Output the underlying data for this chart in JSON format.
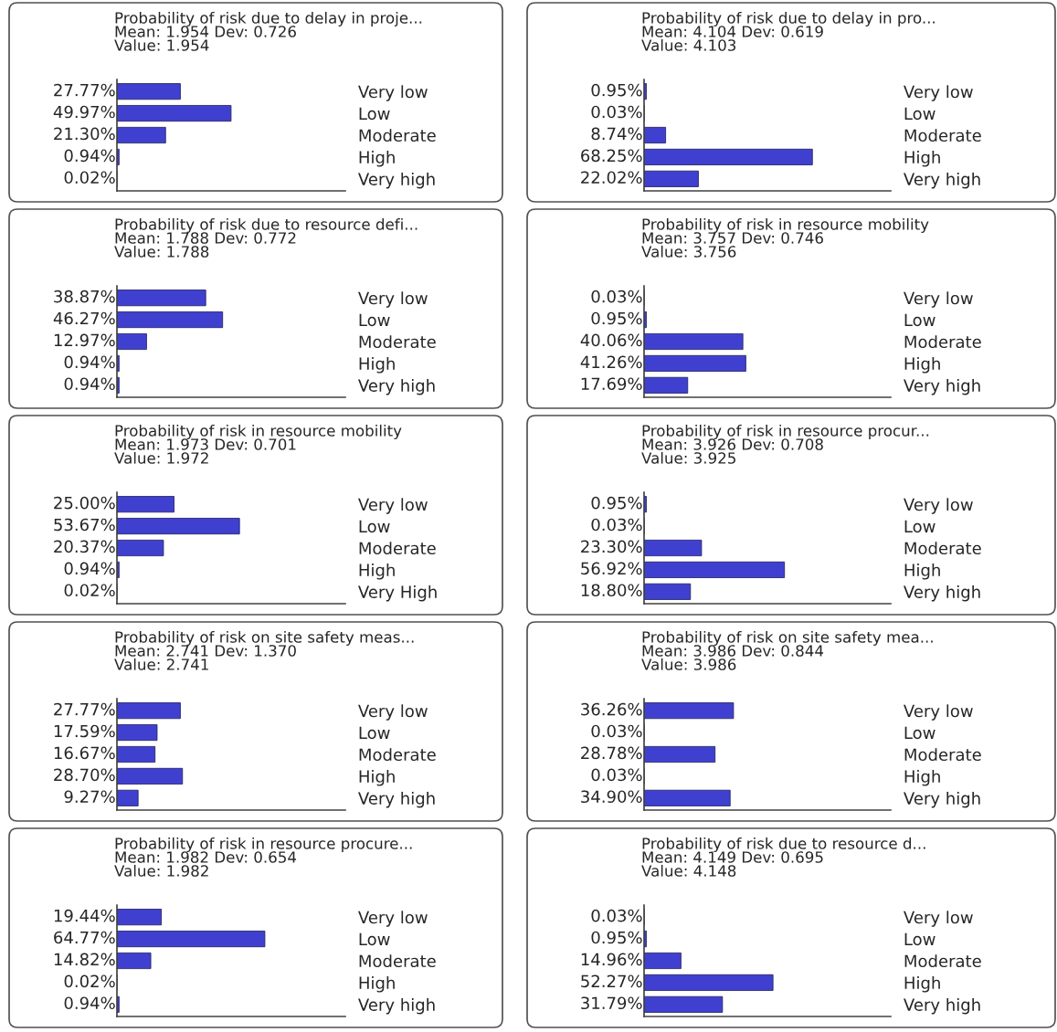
{
  "chart_data": [
    {
      "type": "bar",
      "orientation": "horizontal",
      "title": "Probability of risk due to delay in proje...",
      "subtitle": "Mean: 1.954 Dev: 0.726",
      "annotations": [
        "Value: 1.954"
      ],
      "categories": [
        "Very low",
        "Low",
        "Moderate",
        "High",
        "Very high"
      ],
      "values": [
        27.77,
        49.97,
        21.3,
        0.94,
        0.02
      ],
      "value_labels": [
        "27.77%",
        "49.97%",
        "21.30%",
        "0.94%",
        "0.02%"
      ],
      "color": "#4040d0",
      "xlim": [
        0,
        100
      ],
      "tick_labels": "y",
      "grid": false,
      "legend": false
    },
    {
      "type": "bar",
      "orientation": "horizontal",
      "title": "Probability of risk due to delay in pro...",
      "subtitle": "Mean: 4.104 Dev: 0.619",
      "annotations": [
        "Value: 4.103"
      ],
      "categories": [
        "Very low",
        "Low",
        "Moderate",
        "High",
        "Very high"
      ],
      "values": [
        0.95,
        0.03,
        8.74,
        68.25,
        22.02
      ],
      "value_labels": [
        "0.95%",
        "0.03%",
        "8.74%",
        "68.25%",
        "22.02%"
      ],
      "color": "#4040d0",
      "xlim": [
        0,
        100
      ],
      "tick_labels": "y",
      "grid": false,
      "legend": false
    },
    {
      "type": "bar",
      "orientation": "horizontal",
      "title": "Probability of risk due to resource defi...",
      "subtitle": "Mean: 1.788 Dev: 0.772",
      "annotations": [
        "Value: 1.788"
      ],
      "categories": [
        "Very low",
        "Low",
        "Moderate",
        "High",
        "Very high"
      ],
      "values": [
        38.87,
        46.27,
        12.97,
        0.94,
        0.94
      ],
      "value_labels": [
        "38.87%",
        "46.27%",
        "12.97%",
        "0.94%",
        "0.94%"
      ],
      "color": "#4040d0",
      "xlim": [
        0,
        100
      ],
      "tick_labels": "y",
      "grid": false,
      "legend": false
    },
    {
      "type": "bar",
      "orientation": "horizontal",
      "title": "Probability of risk in resource mobility",
      "subtitle": "Mean: 3.757 Dev: 0.746",
      "annotations": [
        "Value: 3.756"
      ],
      "categories": [
        "Very low",
        "Low",
        "Moderate",
        "High",
        "Very high"
      ],
      "values": [
        0.03,
        0.95,
        40.06,
        41.26,
        17.69
      ],
      "value_labels": [
        "0.03%",
        "0.95%",
        "40.06%",
        "41.26%",
        "17.69%"
      ],
      "color": "#4040d0",
      "xlim": [
        0,
        100
      ],
      "tick_labels": "y",
      "grid": false,
      "legend": false
    },
    {
      "type": "bar",
      "orientation": "horizontal",
      "title": "Probability of risk in resource mobility",
      "subtitle": "Mean: 1.973 Dev: 0.701",
      "annotations": [
        "Value: 1.972"
      ],
      "categories": [
        "Very low",
        "Low",
        "Moderate",
        "High",
        "Very High"
      ],
      "values": [
        25.0,
        53.67,
        20.37,
        0.94,
        0.02
      ],
      "value_labels": [
        "25.00%",
        "53.67%",
        "20.37%",
        "0.94%",
        "0.02%"
      ],
      "color": "#4040d0",
      "xlim": [
        0,
        100
      ],
      "tick_labels": "y",
      "grid": false,
      "legend": false
    },
    {
      "type": "bar",
      "orientation": "horizontal",
      "title": "Probability of risk in resource procur...",
      "subtitle": "Mean: 3.926 Dev: 0.708",
      "annotations": [
        "Value: 3.925"
      ],
      "categories": [
        "Very low",
        "Low",
        "Moderate",
        "High",
        "Very high"
      ],
      "values": [
        0.95,
        0.03,
        23.3,
        56.92,
        18.8
      ],
      "value_labels": [
        "0.95%",
        "0.03%",
        "23.30%",
        "56.92%",
        "18.80%"
      ],
      "color": "#4040d0",
      "xlim": [
        0,
        100
      ],
      "tick_labels": "y",
      "grid": false,
      "legend": false
    },
    {
      "type": "bar",
      "orientation": "horizontal",
      "title": "Probability of risk on site safety meas...",
      "subtitle": "Mean: 2.741 Dev: 1.370",
      "annotations": [
        "Value: 2.741"
      ],
      "categories": [
        "Very low",
        "Low",
        "Moderate",
        "High",
        "Very high"
      ],
      "values": [
        27.77,
        17.59,
        16.67,
        28.7,
        9.27
      ],
      "value_labels": [
        "27.77%",
        "17.59%",
        "16.67%",
        "28.70%",
        "9.27%"
      ],
      "color": "#4040d0",
      "xlim": [
        0,
        100
      ],
      "tick_labels": "y",
      "grid": false,
      "legend": false
    },
    {
      "type": "bar",
      "orientation": "horizontal",
      "title": "Probability of risk on site safety mea...",
      "subtitle": "Mean: 3.986 Dev: 0.844",
      "annotations": [
        "Value: 3.986"
      ],
      "categories": [
        "Very low",
        "Low",
        "Moderate",
        "High",
        "Very high"
      ],
      "values": [
        36.26,
        0.03,
        28.78,
        0.03,
        34.9
      ],
      "value_labels": [
        "36.26%",
        "0.03%",
        "28.78%",
        "0.03%",
        "34.90%"
      ],
      "color": "#4040d0",
      "xlim": [
        0,
        100
      ],
      "tick_labels": "y",
      "grid": false,
      "legend": false
    },
    {
      "type": "bar",
      "orientation": "horizontal",
      "title": "Probability of risk in resource procure...",
      "subtitle": "Mean: 1.982 Dev: 0.654",
      "annotations": [
        "Value: 1.982"
      ],
      "categories": [
        "Very low",
        "Low",
        "Moderate",
        "High",
        "Very high"
      ],
      "values": [
        19.44,
        64.77,
        14.82,
        0.02,
        0.94
      ],
      "value_labels": [
        "19.44%",
        "64.77%",
        "14.82%",
        "0.02%",
        "0.94%"
      ],
      "color": "#4040d0",
      "xlim": [
        0,
        100
      ],
      "tick_labels": "y",
      "grid": false,
      "legend": false
    },
    {
      "type": "bar",
      "orientation": "horizontal",
      "title": "Probability of risk due to resource d...",
      "subtitle": "Mean: 4.149 Dev: 0.695",
      "annotations": [
        "Value: 4.148"
      ],
      "categories": [
        "Very low",
        "Low",
        "Moderate",
        "High",
        "Very high"
      ],
      "values": [
        0.03,
        0.95,
        14.96,
        52.27,
        31.79
      ],
      "value_labels": [
        "0.03%",
        "0.95%",
        "14.96%",
        "52.27%",
        "31.79%"
      ],
      "color": "#4040d0",
      "xlim": [
        0,
        100
      ],
      "tick_labels": "y",
      "grid": false,
      "legend": false
    }
  ]
}
